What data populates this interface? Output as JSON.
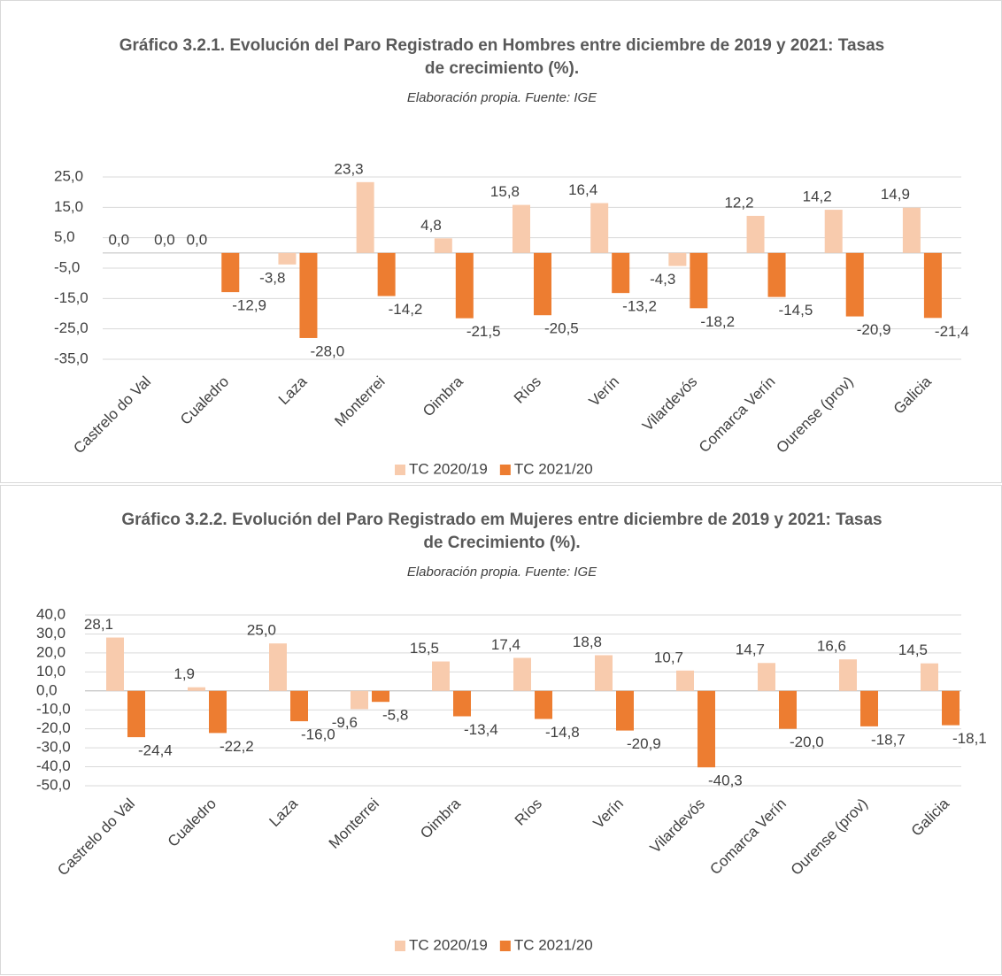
{
  "chart_data": [
    {
      "type": "bar",
      "title": "Gráfico 3.2.1. Evolución del Paro Registrado en Hombres entre diciembre de 2019 y 2021: Tasas de crecimiento (%).",
      "subtitle": "Elaboración propia. Fuente: IGE",
      "categories": [
        "Castrelo do Val",
        "Cualedro",
        "Laza",
        "Monterrei",
        "Oimbra",
        "Ríos",
        "Verín",
        "Vilardevós",
        "Comarca Verín",
        "Ourense (prov)",
        "Galicia"
      ],
      "series": [
        {
          "name": "TC 2020/19",
          "color": "#f8cbad",
          "values": [
            0,
            0,
            -3.8,
            23.3,
            4.8,
            15.8,
            16.4,
            -4.3,
            12.2,
            14.2,
            14.9
          ],
          "value_labels": [
            "0,0",
            "0,0",
            "-3,8",
            "23,3",
            "4,8",
            "15,8",
            "16,4",
            "-4,3",
            "12,2",
            "14,2",
            "14,9"
          ]
        },
        {
          "name": "TC 2021/20",
          "color": "#ed7d31",
          "values": [
            0,
            -12.9,
            -28.0,
            -14.2,
            -21.5,
            -20.5,
            -13.2,
            -18.2,
            -14.5,
            -20.9,
            -21.4
          ],
          "value_labels": [
            "0,0",
            "-12,9",
            "-28,0",
            "-14,2",
            "-21,5",
            "-20,5",
            "-13,2",
            "-18,2",
            "-14,5",
            "-20,9",
            "-21,4"
          ]
        }
      ],
      "ylim": [
        -35,
        25
      ],
      "yticks": [
        {
          "value": 25,
          "label": "25,0"
        },
        {
          "value": 15,
          "label": "15,0"
        },
        {
          "value": 5,
          "label": "5,0"
        },
        {
          "value": -5,
          "label": "-5,0"
        },
        {
          "value": -15,
          "label": "-15,0"
        },
        {
          "value": -25,
          "label": "-25,0"
        },
        {
          "value": -35,
          "label": "-35,0"
        }
      ],
      "grid": true,
      "legend": "bottom"
    },
    {
      "type": "bar",
      "title": "Gráfico 3.2.2. Evolución del Paro Registrado em Mujeres entre diciembre de 2019 y 2021: Tasas de Crecimiento (%).",
      "subtitle": "Elaboración propia. Fuente: IGE",
      "categories": [
        "Castrelo do Val",
        "Cualedro",
        "Laza",
        "Monterrei",
        "Oimbra",
        "Ríos",
        "Verín",
        "Vilardevós",
        "Comarca Verín",
        "Ourense (prov)",
        "Galicia"
      ],
      "series": [
        {
          "name": "TC 2020/19",
          "color": "#f8cbad",
          "values": [
            28.1,
            1.9,
            25.0,
            -9.6,
            15.5,
            17.4,
            18.8,
            10.7,
            14.7,
            16.6,
            14.5
          ],
          "value_labels": [
            "28,1",
            "1,9",
            "25,0",
            "-9,6",
            "15,5",
            "17,4",
            "18,8",
            "10,7",
            "14,7",
            "16,6",
            "14,5"
          ]
        },
        {
          "name": "TC 2021/20",
          "color": "#ed7d31",
          "values": [
            -24.4,
            -22.2,
            -16.0,
            -5.8,
            -13.4,
            -14.8,
            -20.9,
            -40.3,
            -20.0,
            -18.7,
            -18.1
          ],
          "value_labels": [
            "-24,4",
            "-22,2",
            "-16,0",
            "-5,8",
            "-13,4",
            "-14,8",
            "-20,9",
            "-40,3",
            "-20,0",
            "-18,7",
            "-18,1"
          ]
        }
      ],
      "ylim": [
        -50,
        40
      ],
      "yticks": [
        {
          "value": 40,
          "label": "40,0"
        },
        {
          "value": 30,
          "label": "30,0"
        },
        {
          "value": 20,
          "label": "20,0"
        },
        {
          "value": 10,
          "label": "10,0"
        },
        {
          "value": 0,
          "label": "0,0"
        },
        {
          "value": -10,
          "label": "-10,0"
        },
        {
          "value": -20,
          "label": "-20,0"
        },
        {
          "value": -30,
          "label": "-30,0"
        },
        {
          "value": -40,
          "label": "-40,0"
        },
        {
          "value": -50,
          "label": "-50,0"
        }
      ],
      "grid": true,
      "legend": "bottom"
    }
  ]
}
